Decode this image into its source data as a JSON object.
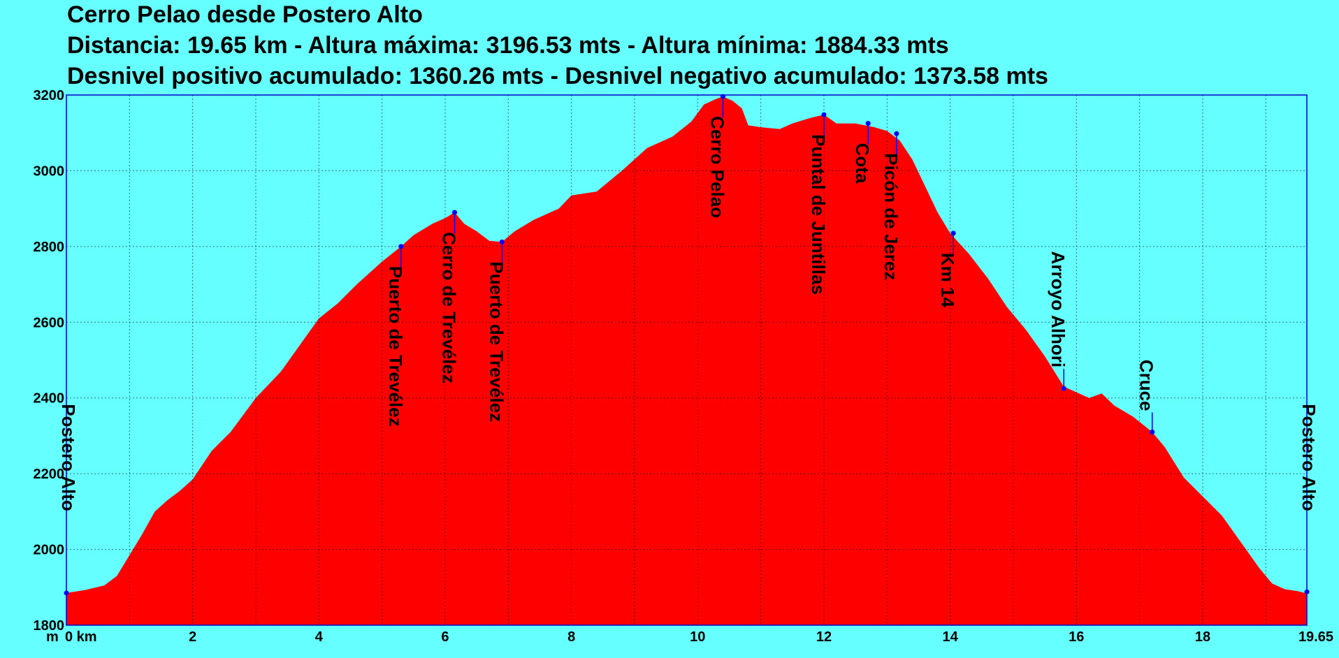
{
  "chart_data": {
    "type": "area",
    "title": "Cerro Pelao desde Postero Alto",
    "subtitle_1": "Distancia: 19.65 km - Altura máxima: 3196.53 mts - Altura mínima: 1884.33 mts",
    "subtitle_2": "Desnivel positivo acumulado: 1360.26 mts - Desnivel negativo acumulado: 1373.58 mts",
    "xlabel": "km",
    "ylabel": "m",
    "xlim": [
      0,
      19.65
    ],
    "ylim": [
      1800,
      3200
    ],
    "grid": true,
    "colors": {
      "fill": "#ff0000",
      "background": "#66ffff",
      "marker": "#0000ff"
    },
    "x_ticks": [
      {
        "value": 0,
        "label": "0 km"
      },
      {
        "value": 2,
        "label": "2"
      },
      {
        "value": 4,
        "label": "4"
      },
      {
        "value": 6,
        "label": "6"
      },
      {
        "value": 8,
        "label": "8"
      },
      {
        "value": 10,
        "label": "10"
      },
      {
        "value": 12,
        "label": "12"
      },
      {
        "value": 14,
        "label": "14"
      },
      {
        "value": 16,
        "label": "16"
      },
      {
        "value": 18,
        "label": "18"
      },
      {
        "value": 19.65,
        "label": "19.65"
      }
    ],
    "y_ticks": [
      1800,
      2000,
      2200,
      2400,
      2600,
      2800,
      3000,
      3200
    ],
    "y_unit_label": "m",
    "profile": {
      "x": [
        0,
        0.3,
        0.6,
        0.8,
        1.0,
        1.2,
        1.4,
        1.6,
        1.8,
        2.0,
        2.3,
        2.6,
        3.0,
        3.4,
        3.7,
        4.0,
        4.3,
        4.6,
        5.0,
        5.3,
        5.5,
        5.8,
        6.0,
        6.15,
        6.3,
        6.5,
        6.7,
        6.9,
        7.1,
        7.4,
        7.8,
        8.0,
        8.4,
        8.8,
        9.2,
        9.6,
        9.9,
        10.1,
        10.3,
        10.4,
        10.55,
        10.7,
        10.8,
        11.0,
        11.3,
        11.5,
        11.8,
        12.0,
        12.2,
        12.5,
        12.8,
        13.0,
        13.2,
        13.4,
        13.6,
        13.8,
        14.0,
        14.3,
        14.6,
        14.9,
        15.2,
        15.5,
        15.8,
        16.0,
        16.2,
        16.4,
        16.6,
        16.9,
        17.2,
        17.4,
        17.7,
        18.0,
        18.3,
        18.6,
        18.9,
        19.1,
        19.3,
        19.5,
        19.65
      ],
      "y": [
        1885,
        1893,
        1905,
        1930,
        1985,
        2040,
        2100,
        2130,
        2155,
        2185,
        2260,
        2310,
        2400,
        2470,
        2540,
        2610,
        2650,
        2700,
        2760,
        2800,
        2830,
        2860,
        2875,
        2890,
        2860,
        2840,
        2815,
        2812,
        2840,
        2870,
        2900,
        2935,
        2945,
        3000,
        3060,
        3090,
        3130,
        3175,
        3190,
        3196,
        3185,
        3165,
        3120,
        3115,
        3110,
        3125,
        3140,
        3148,
        3125,
        3125,
        3115,
        3105,
        3080,
        3030,
        2960,
        2890,
        2835,
        2780,
        2715,
        2640,
        2580,
        2510,
        2430,
        2415,
        2400,
        2412,
        2380,
        2350,
        2310,
        2270,
        2190,
        2140,
        2090,
        2020,
        1950,
        1910,
        1895,
        1890,
        1884
      ]
    },
    "waypoints": [
      {
        "x": 0,
        "y": 1885,
        "label": "Postero Alto"
      },
      {
        "x": 5.3,
        "y": 2800,
        "label": "Puerto de Trevélez"
      },
      {
        "x": 6.15,
        "y": 2890,
        "label": "Cerro de Trevélez"
      },
      {
        "x": 6.9,
        "y": 2812,
        "label": "Puerto de Trevélez"
      },
      {
        "x": 10.4,
        "y": 3196,
        "label": "Cerro Pelao"
      },
      {
        "x": 12.0,
        "y": 3148,
        "label": "Puntal de Juntillas"
      },
      {
        "x": 12.7,
        "y": 3125,
        "label": "Cota"
      },
      {
        "x": 13.15,
        "y": 3098,
        "label": "Picón de Jerez"
      },
      {
        "x": 14.05,
        "y": 2835,
        "label": "Km 14"
      },
      {
        "x": 15.8,
        "y": 2425,
        "label": "Arroyo Alhori"
      },
      {
        "x": 17.2,
        "y": 2310,
        "label": "Cruce"
      },
      {
        "x": 19.65,
        "y": 1888,
        "label": "Postero Alto"
      }
    ]
  }
}
